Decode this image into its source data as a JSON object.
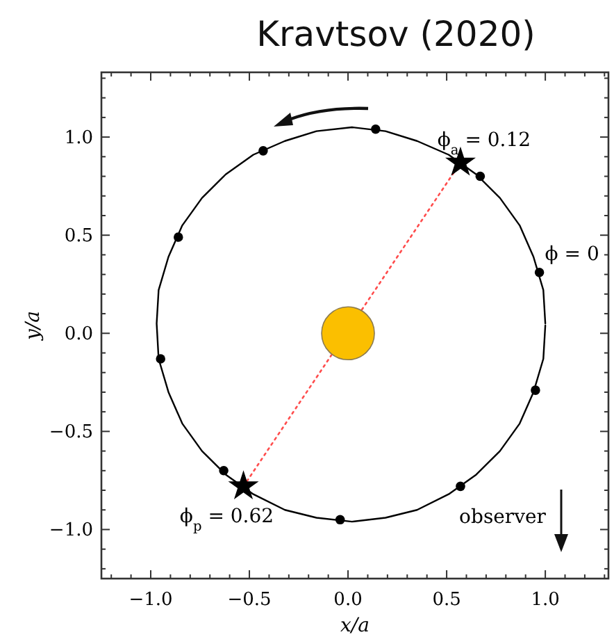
{
  "chart_data": {
    "type": "scatter",
    "title": "Kravtsov (2020)",
    "xlabel": "x/a",
    "ylabel": "y/a",
    "xlim": [
      -1.25,
      1.32
    ],
    "ylim": [
      -1.25,
      1.33
    ],
    "xticks": [
      {
        "value": -1.2,
        "label": null
      },
      {
        "value": -1.0,
        "label": "−1.0"
      },
      {
        "value": -0.9,
        "label": null
      },
      {
        "value": -0.8,
        "label": null
      },
      {
        "value": -0.7,
        "label": null
      },
      {
        "value": -0.6,
        "label": null
      },
      {
        "value": -0.5,
        "label": "−0.5"
      },
      {
        "value": -0.4,
        "label": null
      },
      {
        "value": -0.3,
        "label": null
      },
      {
        "value": -0.2,
        "label": null
      },
      {
        "value": -0.1,
        "label": null
      },
      {
        "value": 0,
        "label": "0.0"
      },
      {
        "value": 0.1,
        "label": null
      },
      {
        "value": 0.2,
        "label": null
      },
      {
        "value": 0.3,
        "label": null
      },
      {
        "value": 0.4,
        "label": null
      },
      {
        "value": 0.5,
        "label": "0.5"
      },
      {
        "value": 0.6,
        "label": null
      },
      {
        "value": 0.7,
        "label": null
      },
      {
        "value": 0.8,
        "label": null
      },
      {
        "value": 0.9,
        "label": null
      },
      {
        "value": 1.0,
        "label": "1.0"
      },
      {
        "value": 1.1,
        "label": null
      },
      {
        "value": 1.2,
        "label": null
      },
      {
        "value": 1.3,
        "label": null
      },
      {
        "value": -1.1,
        "label": null
      }
    ],
    "yticks": [
      {
        "value": -1.2,
        "label": null
      },
      {
        "value": -1.1,
        "label": null
      },
      {
        "value": -1.0,
        "label": "−1.0"
      },
      {
        "value": -0.9,
        "label": null
      },
      {
        "value": -0.8,
        "label": null
      },
      {
        "value": -0.7,
        "label": null
      },
      {
        "value": -0.6,
        "label": null
      },
      {
        "value": -0.5,
        "label": "−0.5"
      },
      {
        "value": -0.4,
        "label": null
      },
      {
        "value": -0.3,
        "label": null
      },
      {
        "value": -0.2,
        "label": null
      },
      {
        "value": -0.1,
        "label": null
      },
      {
        "value": 0,
        "label": "0.0"
      },
      {
        "value": 0.1,
        "label": null
      },
      {
        "value": 0.2,
        "label": null
      },
      {
        "value": 0.3,
        "label": null
      },
      {
        "value": 0.4,
        "label": null
      },
      {
        "value": 0.5,
        "label": "0.5"
      },
      {
        "value": 0.6,
        "label": null
      },
      {
        "value": 0.7,
        "label": null
      },
      {
        "value": 0.8,
        "label": null
      },
      {
        "value": 0.9,
        "label": null
      },
      {
        "value": 1.0,
        "label": "1.0"
      },
      {
        "value": 1.1,
        "label": null
      },
      {
        "value": 1.2,
        "label": null
      },
      {
        "value": 1.3,
        "label": null
      }
    ],
    "grid": false,
    "series": [
      {
        "type": "line",
        "color": "#000000",
        "marker": "none",
        "line_style": "solid",
        "x": [
          1.0,
          0.99,
          0.94,
          0.87,
          0.77,
          0.65,
          0.51,
          0.35,
          0.19,
          0.02,
          -0.16,
          -0.32,
          -0.48,
          -0.62,
          -0.74,
          -0.84,
          -0.91,
          -0.96,
          -0.97,
          -0.96,
          -0.91,
          -0.84,
          -0.74,
          -0.62,
          -0.48,
          -0.32,
          -0.16,
          0.02,
          0.19,
          0.35,
          0.51,
          0.65,
          0.77,
          0.87,
          0.94,
          0.99,
          1.0
        ],
        "values": [
          0.05,
          0.22,
          0.39,
          0.55,
          0.69,
          0.81,
          0.91,
          0.98,
          1.03,
          1.05,
          1.03,
          0.98,
          0.91,
          0.81,
          0.69,
          0.55,
          0.39,
          0.22,
          0.05,
          -0.13,
          -0.3,
          -0.46,
          -0.6,
          -0.72,
          -0.82,
          -0.9,
          -0.94,
          -0.96,
          -0.94,
          -0.9,
          -0.82,
          -0.72,
          -0.6,
          -0.46,
          -0.3,
          -0.13,
          0.04
        ]
      },
      {
        "type": "line",
        "color": "#ff4d4d",
        "marker": "none",
        "line_style": "dotted",
        "x": [
          -0.53,
          0.57
        ],
        "values": [
          -0.78,
          0.87
        ]
      },
      {
        "color": "#000000",
        "marker": "circle",
        "x": [
          0.97,
          0.67,
          0.14,
          -0.43,
          -0.86,
          -0.95,
          -0.63,
          -0.04,
          0.57,
          0.95
        ],
        "values": [
          0.31,
          0.8,
          1.04,
          0.93,
          0.49,
          -0.13,
          -0.7,
          -0.95,
          -0.78,
          -0.29
        ]
      },
      {
        "color": "#000000",
        "marker": "star",
        "x": [
          0.57,
          -0.53
        ],
        "values": [
          0.87,
          -0.78
        ]
      },
      {
        "type": "bubble",
        "color": "#fbbf00",
        "x": [
          0
        ],
        "values": [
          0
        ],
        "sizes": [
          1
        ]
      }
    ],
    "annotations": [
      {
        "text": "ϕ$_{a}$ = 0.12",
        "x": 0.57,
        "y": 0.87
      },
      {
        "text": "ϕ = 0",
        "x": 0.97,
        "y": 0.31
      },
      {
        "text": "ϕ$_{p}$ = 0.62",
        "x": -0.53,
        "y": -0.78
      },
      "observer"
    ]
  }
}
